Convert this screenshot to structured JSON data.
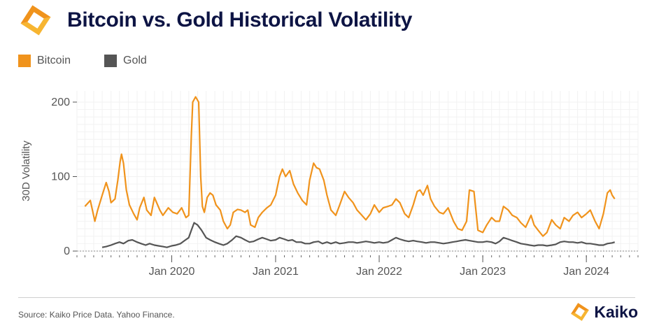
{
  "header": {
    "title": "Bitcoin vs. Gold Historical Volatility"
  },
  "legend": [
    {
      "label": "Bitcoin",
      "color": "#f0931c"
    },
    {
      "label": "Gold",
      "color": "#555555"
    }
  ],
  "footer": {
    "source": "Source: Kaiko Price Data. Yahoo Finance.",
    "brand": "Kaiko"
  },
  "colors": {
    "accent": "#f0931c",
    "title": "#0d1444",
    "gold": "#555555"
  },
  "chart_data": {
    "type": "line",
    "title": "Bitcoin vs. Gold Historical Volatility",
    "xlabel": "",
    "ylabel": "30D Volatility",
    "ylim": [
      0,
      215
    ],
    "xlim": [
      "2019-02-01",
      "2024-07-01"
    ],
    "yticks": [
      0,
      100,
      200
    ],
    "xtick_labels": [
      {
        "date": "2020-01-01",
        "label": "Jan 2020"
      },
      {
        "date": "2021-01-01",
        "label": "Jan 2021"
      },
      {
        "date": "2022-01-01",
        "label": "Jan 2022"
      },
      {
        "date": "2023-01-01",
        "label": "Jan 2023"
      },
      {
        "date": "2024-01-01",
        "label": "Jan 2024"
      }
    ],
    "grid": true,
    "legend_position": "top-left",
    "series": [
      {
        "name": "Bitcoin",
        "color": "#f0931c",
        "points": [
          [
            "2019-03-01",
            60
          ],
          [
            "2019-03-20",
            68
          ],
          [
            "2019-04-05",
            40
          ],
          [
            "2019-04-15",
            55
          ],
          [
            "2019-05-01",
            75
          ],
          [
            "2019-05-15",
            92
          ],
          [
            "2019-05-25",
            80
          ],
          [
            "2019-06-01",
            65
          ],
          [
            "2019-06-15",
            70
          ],
          [
            "2019-06-25",
            95
          ],
          [
            "2019-07-03",
            120
          ],
          [
            "2019-07-08",
            130
          ],
          [
            "2019-07-15",
            118
          ],
          [
            "2019-07-25",
            82
          ],
          [
            "2019-08-05",
            62
          ],
          [
            "2019-08-20",
            50
          ],
          [
            "2019-09-01",
            42
          ],
          [
            "2019-09-10",
            58
          ],
          [
            "2019-09-25",
            72
          ],
          [
            "2019-10-05",
            55
          ],
          [
            "2019-10-20",
            48
          ],
          [
            "2019-11-01",
            72
          ],
          [
            "2019-11-20",
            55
          ],
          [
            "2019-12-01",
            48
          ],
          [
            "2019-12-20",
            58
          ],
          [
            "2020-01-05",
            52
          ],
          [
            "2020-01-20",
            50
          ],
          [
            "2020-02-05",
            58
          ],
          [
            "2020-02-20",
            45
          ],
          [
            "2020-03-01",
            48
          ],
          [
            "2020-03-10",
            155
          ],
          [
            "2020-03-15",
            200
          ],
          [
            "2020-03-25",
            207
          ],
          [
            "2020-04-05",
            200
          ],
          [
            "2020-04-12",
            100
          ],
          [
            "2020-04-18",
            60
          ],
          [
            "2020-04-25",
            52
          ],
          [
            "2020-05-05",
            72
          ],
          [
            "2020-05-15",
            78
          ],
          [
            "2020-05-25",
            75
          ],
          [
            "2020-06-05",
            62
          ],
          [
            "2020-06-20",
            55
          ],
          [
            "2020-07-01",
            40
          ],
          [
            "2020-07-15",
            30
          ],
          [
            "2020-07-25",
            35
          ],
          [
            "2020-08-05",
            52
          ],
          [
            "2020-08-20",
            56
          ],
          [
            "2020-09-01",
            55
          ],
          [
            "2020-09-15",
            52
          ],
          [
            "2020-09-25",
            55
          ],
          [
            "2020-10-05",
            35
          ],
          [
            "2020-10-20",
            32
          ],
          [
            "2020-11-01",
            45
          ],
          [
            "2020-11-15",
            52
          ],
          [
            "2020-12-01",
            58
          ],
          [
            "2020-12-15",
            62
          ],
          [
            "2021-01-01",
            75
          ],
          [
            "2021-01-15",
            100
          ],
          [
            "2021-01-25",
            110
          ],
          [
            "2021-02-05",
            100
          ],
          [
            "2021-02-20",
            108
          ],
          [
            "2021-03-05",
            90
          ],
          [
            "2021-03-20",
            78
          ],
          [
            "2021-04-05",
            68
          ],
          [
            "2021-04-20",
            62
          ],
          [
            "2021-05-01",
            95
          ],
          [
            "2021-05-15",
            118
          ],
          [
            "2021-05-25",
            112
          ],
          [
            "2021-06-05",
            110
          ],
          [
            "2021-06-20",
            95
          ],
          [
            "2021-07-01",
            75
          ],
          [
            "2021-07-15",
            55
          ],
          [
            "2021-08-01",
            48
          ],
          [
            "2021-08-15",
            62
          ],
          [
            "2021-09-01",
            80
          ],
          [
            "2021-09-15",
            72
          ],
          [
            "2021-10-01",
            65
          ],
          [
            "2021-10-15",
            55
          ],
          [
            "2021-11-01",
            48
          ],
          [
            "2021-11-15",
            42
          ],
          [
            "2021-12-01",
            50
          ],
          [
            "2021-12-15",
            62
          ],
          [
            "2022-01-01",
            52
          ],
          [
            "2022-01-15",
            58
          ],
          [
            "2022-02-01",
            60
          ],
          [
            "2022-02-15",
            62
          ],
          [
            "2022-03-01",
            70
          ],
          [
            "2022-03-15",
            65
          ],
          [
            "2022-04-01",
            50
          ],
          [
            "2022-04-15",
            45
          ],
          [
            "2022-05-01",
            62
          ],
          [
            "2022-05-15",
            80
          ],
          [
            "2022-05-25",
            82
          ],
          [
            "2022-06-05",
            75
          ],
          [
            "2022-06-20",
            88
          ],
          [
            "2022-07-01",
            70
          ],
          [
            "2022-07-15",
            60
          ],
          [
            "2022-08-01",
            52
          ],
          [
            "2022-08-15",
            50
          ],
          [
            "2022-09-01",
            58
          ],
          [
            "2022-09-20",
            40
          ],
          [
            "2022-10-05",
            30
          ],
          [
            "2022-10-20",
            28
          ],
          [
            "2022-11-05",
            40
          ],
          [
            "2022-11-15",
            82
          ],
          [
            "2022-12-01",
            80
          ],
          [
            "2022-12-15",
            28
          ],
          [
            "2023-01-01",
            25
          ],
          [
            "2023-01-15",
            35
          ],
          [
            "2023-02-01",
            45
          ],
          [
            "2023-02-15",
            40
          ],
          [
            "2023-03-01",
            40
          ],
          [
            "2023-03-15",
            60
          ],
          [
            "2023-04-01",
            55
          ],
          [
            "2023-04-15",
            48
          ],
          [
            "2023-05-01",
            45
          ],
          [
            "2023-05-15",
            38
          ],
          [
            "2023-06-01",
            32
          ],
          [
            "2023-06-20",
            48
          ],
          [
            "2023-07-01",
            35
          ],
          [
            "2023-07-15",
            28
          ],
          [
            "2023-08-01",
            20
          ],
          [
            "2023-08-15",
            25
          ],
          [
            "2023-09-01",
            42
          ],
          [
            "2023-09-15",
            35
          ],
          [
            "2023-10-01",
            30
          ],
          [
            "2023-10-15",
            45
          ],
          [
            "2023-11-01",
            40
          ],
          [
            "2023-11-15",
            48
          ],
          [
            "2023-12-01",
            52
          ],
          [
            "2023-12-15",
            45
          ],
          [
            "2024-01-01",
            50
          ],
          [
            "2024-01-15",
            55
          ],
          [
            "2024-02-01",
            40
          ],
          [
            "2024-02-15",
            30
          ],
          [
            "2024-03-01",
            50
          ],
          [
            "2024-03-15",
            78
          ],
          [
            "2024-03-25",
            82
          ],
          [
            "2024-04-01",
            75
          ],
          [
            "2024-04-10",
            70
          ]
        ]
      },
      {
        "name": "Gold",
        "color": "#555555",
        "points": [
          [
            "2019-05-01",
            5
          ],
          [
            "2019-05-15",
            6
          ],
          [
            "2019-06-01",
            8
          ],
          [
            "2019-06-15",
            10
          ],
          [
            "2019-07-01",
            12
          ],
          [
            "2019-07-15",
            10
          ],
          [
            "2019-08-01",
            14
          ],
          [
            "2019-08-15",
            15
          ],
          [
            "2019-09-01",
            12
          ],
          [
            "2019-09-15",
            10
          ],
          [
            "2019-10-01",
            8
          ],
          [
            "2019-10-15",
            10
          ],
          [
            "2019-11-01",
            8
          ],
          [
            "2019-11-15",
            7
          ],
          [
            "2019-12-01",
            6
          ],
          [
            "2019-12-15",
            5
          ],
          [
            "2020-01-01",
            7
          ],
          [
            "2020-01-15",
            8
          ],
          [
            "2020-02-01",
            10
          ],
          [
            "2020-02-15",
            14
          ],
          [
            "2020-03-01",
            18
          ],
          [
            "2020-03-10",
            28
          ],
          [
            "2020-03-20",
            38
          ],
          [
            "2020-04-01",
            35
          ],
          [
            "2020-04-15",
            28
          ],
          [
            "2020-05-01",
            18
          ],
          [
            "2020-05-15",
            15
          ],
          [
            "2020-06-01",
            12
          ],
          [
            "2020-06-15",
            10
          ],
          [
            "2020-07-01",
            8
          ],
          [
            "2020-07-15",
            10
          ],
          [
            "2020-08-01",
            15
          ],
          [
            "2020-08-15",
            20
          ],
          [
            "2020-09-01",
            18
          ],
          [
            "2020-09-15",
            15
          ],
          [
            "2020-10-01",
            12
          ],
          [
            "2020-10-15",
            13
          ],
          [
            "2020-11-01",
            16
          ],
          [
            "2020-11-15",
            18
          ],
          [
            "2020-12-01",
            16
          ],
          [
            "2020-12-15",
            14
          ],
          [
            "2021-01-01",
            15
          ],
          [
            "2021-01-15",
            18
          ],
          [
            "2021-02-01",
            16
          ],
          [
            "2021-02-15",
            14
          ],
          [
            "2021-03-01",
            15
          ],
          [
            "2021-03-15",
            12
          ],
          [
            "2021-04-01",
            12
          ],
          [
            "2021-04-15",
            10
          ],
          [
            "2021-05-01",
            10
          ],
          [
            "2021-05-15",
            12
          ],
          [
            "2021-06-01",
            13
          ],
          [
            "2021-06-15",
            10
          ],
          [
            "2021-07-01",
            12
          ],
          [
            "2021-07-15",
            10
          ],
          [
            "2021-08-01",
            12
          ],
          [
            "2021-08-15",
            10
          ],
          [
            "2021-09-01",
            11
          ],
          [
            "2021-09-15",
            12
          ],
          [
            "2021-10-01",
            12
          ],
          [
            "2021-10-15",
            11
          ],
          [
            "2021-11-01",
            12
          ],
          [
            "2021-11-15",
            13
          ],
          [
            "2021-12-01",
            12
          ],
          [
            "2021-12-15",
            11
          ],
          [
            "2022-01-01",
            12
          ],
          [
            "2022-01-15",
            11
          ],
          [
            "2022-02-01",
            12
          ],
          [
            "2022-02-15",
            15
          ],
          [
            "2022-03-01",
            18
          ],
          [
            "2022-03-15",
            16
          ],
          [
            "2022-04-01",
            14
          ],
          [
            "2022-04-15",
            13
          ],
          [
            "2022-05-01",
            14
          ],
          [
            "2022-05-15",
            13
          ],
          [
            "2022-06-01",
            12
          ],
          [
            "2022-06-15",
            11
          ],
          [
            "2022-07-01",
            12
          ],
          [
            "2022-07-15",
            12
          ],
          [
            "2022-08-01",
            11
          ],
          [
            "2022-08-15",
            10
          ],
          [
            "2022-09-01",
            11
          ],
          [
            "2022-09-15",
            12
          ],
          [
            "2022-10-01",
            13
          ],
          [
            "2022-10-15",
            14
          ],
          [
            "2022-11-01",
            15
          ],
          [
            "2022-11-15",
            14
          ],
          [
            "2022-12-01",
            13
          ],
          [
            "2022-12-15",
            12
          ],
          [
            "2023-01-01",
            12
          ],
          [
            "2023-01-15",
            13
          ],
          [
            "2023-02-01",
            12
          ],
          [
            "2023-02-15",
            10
          ],
          [
            "2023-03-01",
            13
          ],
          [
            "2023-03-15",
            18
          ],
          [
            "2023-04-01",
            16
          ],
          [
            "2023-04-15",
            14
          ],
          [
            "2023-05-01",
            12
          ],
          [
            "2023-05-15",
            10
          ],
          [
            "2023-06-01",
            9
          ],
          [
            "2023-06-15",
            8
          ],
          [
            "2023-07-01",
            7
          ],
          [
            "2023-07-15",
            8
          ],
          [
            "2023-08-01",
            8
          ],
          [
            "2023-08-15",
            7
          ],
          [
            "2023-09-01",
            8
          ],
          [
            "2023-09-15",
            9
          ],
          [
            "2023-10-01",
            12
          ],
          [
            "2023-10-15",
            13
          ],
          [
            "2023-11-01",
            12
          ],
          [
            "2023-11-15",
            12
          ],
          [
            "2023-12-01",
            11
          ],
          [
            "2023-12-15",
            12
          ],
          [
            "2024-01-01",
            10
          ],
          [
            "2024-01-15",
            10
          ],
          [
            "2024-02-01",
            9
          ],
          [
            "2024-02-15",
            8
          ],
          [
            "2024-03-01",
            8
          ],
          [
            "2024-03-15",
            10
          ],
          [
            "2024-04-01",
            11
          ],
          [
            "2024-04-10",
            12
          ]
        ]
      }
    ]
  }
}
